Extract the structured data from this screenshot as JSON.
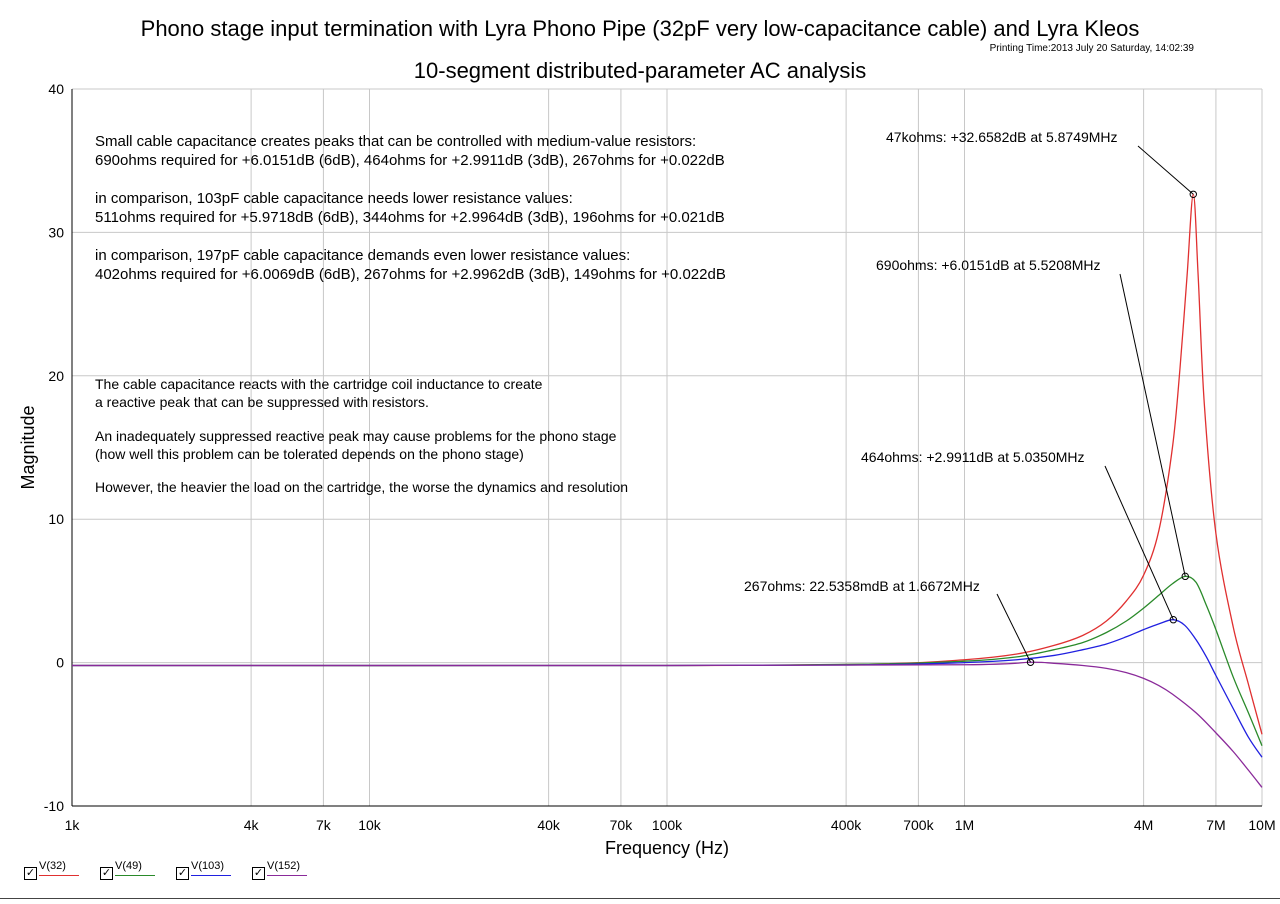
{
  "title_line1": "Phono stage input termination with Lyra Phono Pipe (32pF very low-capacitance cable) and Lyra Kleos",
  "title_line2": "10-segment distributed-parameter AC analysis",
  "printing_time": "Printing Time:2013 July 20 Saturday, 14:02:39",
  "legend": [
    {
      "label": "V(32)",
      "color": "#e03030",
      "checked": true
    },
    {
      "label": "V(49)",
      "color": "#2a8a2a",
      "checked": true
    },
    {
      "label": "V(103)",
      "color": "#2020e0",
      "checked": true
    },
    {
      "label": "V(152)",
      "color": "#8a2a9a",
      "checked": true
    }
  ],
  "notes": [
    "Small cable capacitance creates peaks that can be controlled with medium-value resistors:",
    "690ohms required for +6.0151dB (6dB), 464ohms for +2.9911dB (3dB), 267ohms for +0.022dB",
    "in comparison, 103pF cable capacitance needs lower resistance values:",
    "511ohms required for +5.9718dB (6dB), 344ohms for +2.9964dB (3dB), 196ohms for +0.021dB",
    "in comparison, 197pF cable capacitance demands even lower resistance values:",
    "402ohms required for +6.0069dB (6dB), 267ohms for +2.9962dB (3dB), 149ohms for +0.022dB",
    "The cable capacitance reacts with the cartridge coil inductance to create",
    "a reactive peak that can be suppressed with resistors.",
    "An inadequately suppressed reactive peak may cause problems for the phono stage",
    "(how well this problem can be tolerated depends on the phono stage)",
    "However, the heavier the load on the cartridge, the worse the dynamics and resolution"
  ],
  "chart_data": {
    "type": "line",
    "title": "",
    "xlabel": "Frequency (Hz)",
    "ylabel": "Magnitude",
    "xscale": "log",
    "xlim": [
      1000,
      10000000
    ],
    "ylim": [
      -10,
      40
    ],
    "grid": true,
    "x_ticks": [
      1000,
      4000,
      7000,
      10000,
      40000,
      70000,
      100000,
      400000,
      700000,
      1000000,
      4000000,
      7000000,
      10000000
    ],
    "x_tick_labels": [
      "1k",
      "4k",
      "7k",
      "10k",
      "40k",
      "70k",
      "100k",
      "400k",
      "700k",
      "1M",
      "4M",
      "7M",
      "10M"
    ],
    "y_ticks": [
      -10,
      0,
      10,
      20,
      30,
      40
    ],
    "y_tick_labels": [
      "-10",
      "0",
      "10",
      "20",
      "30",
      "40"
    ],
    "series": [
      {
        "name": "V(32)",
        "color": "#e03030",
        "x": [
          1000,
          100000,
          500000,
          1000000,
          1500000,
          2000000,
          2500000,
          3000000,
          3500000,
          4000000,
          4500000,
          5000000,
          5300000,
          5600000,
          5874900,
          6100000,
          6400000,
          7000000,
          8000000,
          9000000,
          10000000
        ],
        "y": [
          -0.2,
          -0.2,
          -0.1,
          0.2,
          0.6,
          1.2,
          1.9,
          2.9,
          4.3,
          6.1,
          9.2,
          15.0,
          20.5,
          27.0,
          32.6582,
          27.0,
          18.0,
          9.0,
          2.5,
          -1.5,
          -5.0
        ]
      },
      {
        "name": "V(49)",
        "color": "#2a8a2a",
        "x": [
          1000,
          100000,
          500000,
          1000000,
          1500000,
          2000000,
          2500000,
          3000000,
          3500000,
          4000000,
          4500000,
          5000000,
          5520800,
          6000000,
          6500000,
          7000000,
          8000000,
          9000000,
          10000000
        ],
        "y": [
          -0.2,
          -0.2,
          -0.1,
          0.1,
          0.4,
          0.9,
          1.4,
          2.1,
          2.9,
          3.8,
          4.7,
          5.5,
          6.0151,
          5.6,
          4.0,
          2.3,
          -1.0,
          -3.5,
          -5.8
        ]
      },
      {
        "name": "V(103)",
        "color": "#2020e0",
        "x": [
          1000,
          100000,
          500000,
          1000000,
          1500000,
          2000000,
          2500000,
          3000000,
          3500000,
          4000000,
          4500000,
          5035000,
          5500000,
          6000000,
          6500000,
          7000000,
          8000000,
          9000000,
          10000000
        ],
        "y": [
          -0.2,
          -0.2,
          -0.15,
          0.0,
          0.2,
          0.5,
          0.9,
          1.3,
          1.8,
          2.3,
          2.7,
          2.9911,
          2.6,
          1.6,
          0.4,
          -0.9,
          -3.2,
          -5.2,
          -6.6
        ]
      },
      {
        "name": "V(152)",
        "color": "#8a2a9a",
        "x": [
          1000,
          100000,
          1000000,
          1667200,
          2000000,
          2500000,
          3000000,
          3500000,
          4000000,
          4500000,
          5000000,
          6000000,
          7000000,
          8000000,
          9000000,
          10000000
        ],
        "y": [
          -0.2,
          -0.2,
          -0.15,
          0.0225,
          -0.05,
          -0.2,
          -0.4,
          -0.7,
          -1.1,
          -1.6,
          -2.2,
          -3.5,
          -4.9,
          -6.2,
          -7.5,
          -8.7
        ]
      }
    ],
    "annotations": [
      {
        "text": "47kohms: +32.6582dB at 5.8749MHz",
        "x": 5874900,
        "y": 32.6582
      },
      {
        "text": "690ohms: +6.0151dB at 5.5208MHz",
        "x": 5520800,
        "y": 6.0151
      },
      {
        "text": "464ohms: +2.9911dB at 5.0350MHz",
        "x": 5035000,
        "y": 2.9911
      },
      {
        "text": "267ohms: 22.5358mdB at 1.6672MHz",
        "x": 1667200,
        "y": 0.0225
      }
    ]
  }
}
